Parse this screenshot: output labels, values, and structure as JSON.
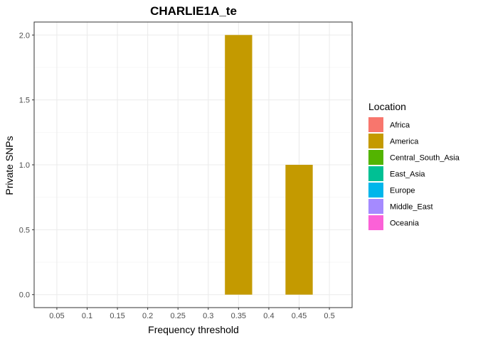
{
  "chart_data": {
    "type": "bar",
    "title": "CHARLIE1A_te",
    "xlabel": "Frequency threshold",
    "ylabel": "Private SNPs",
    "categories": [
      "0.05",
      "0.1",
      "0.15",
      "0.2",
      "0.25",
      "0.3",
      "0.35",
      "0.4",
      "0.45",
      "0.5"
    ],
    "y_ticks": [
      "0.0",
      "0.5",
      "1.0",
      "1.5",
      "2.0"
    ],
    "ylim": [
      -0.1,
      2.1
    ],
    "grid": true,
    "legend_position": "right",
    "legend": {
      "title": "Location",
      "entries": [
        {
          "name": "Africa",
          "color": "#F8766D"
        },
        {
          "name": "America",
          "color": "#C49A00"
        },
        {
          "name": "Central_South_Asia",
          "color": "#53B400"
        },
        {
          "name": "East_Asia",
          "color": "#00C094"
        },
        {
          "name": "Europe",
          "color": "#00B6EB"
        },
        {
          "name": "Middle_East",
          "color": "#A58AFF"
        },
        {
          "name": "Oceania",
          "color": "#FB61D7"
        }
      ]
    },
    "series": [
      {
        "name": "America",
        "color": "#C49A00",
        "values": [
          0,
          0,
          0,
          0,
          0,
          0,
          2,
          0,
          1,
          0
        ]
      }
    ]
  }
}
